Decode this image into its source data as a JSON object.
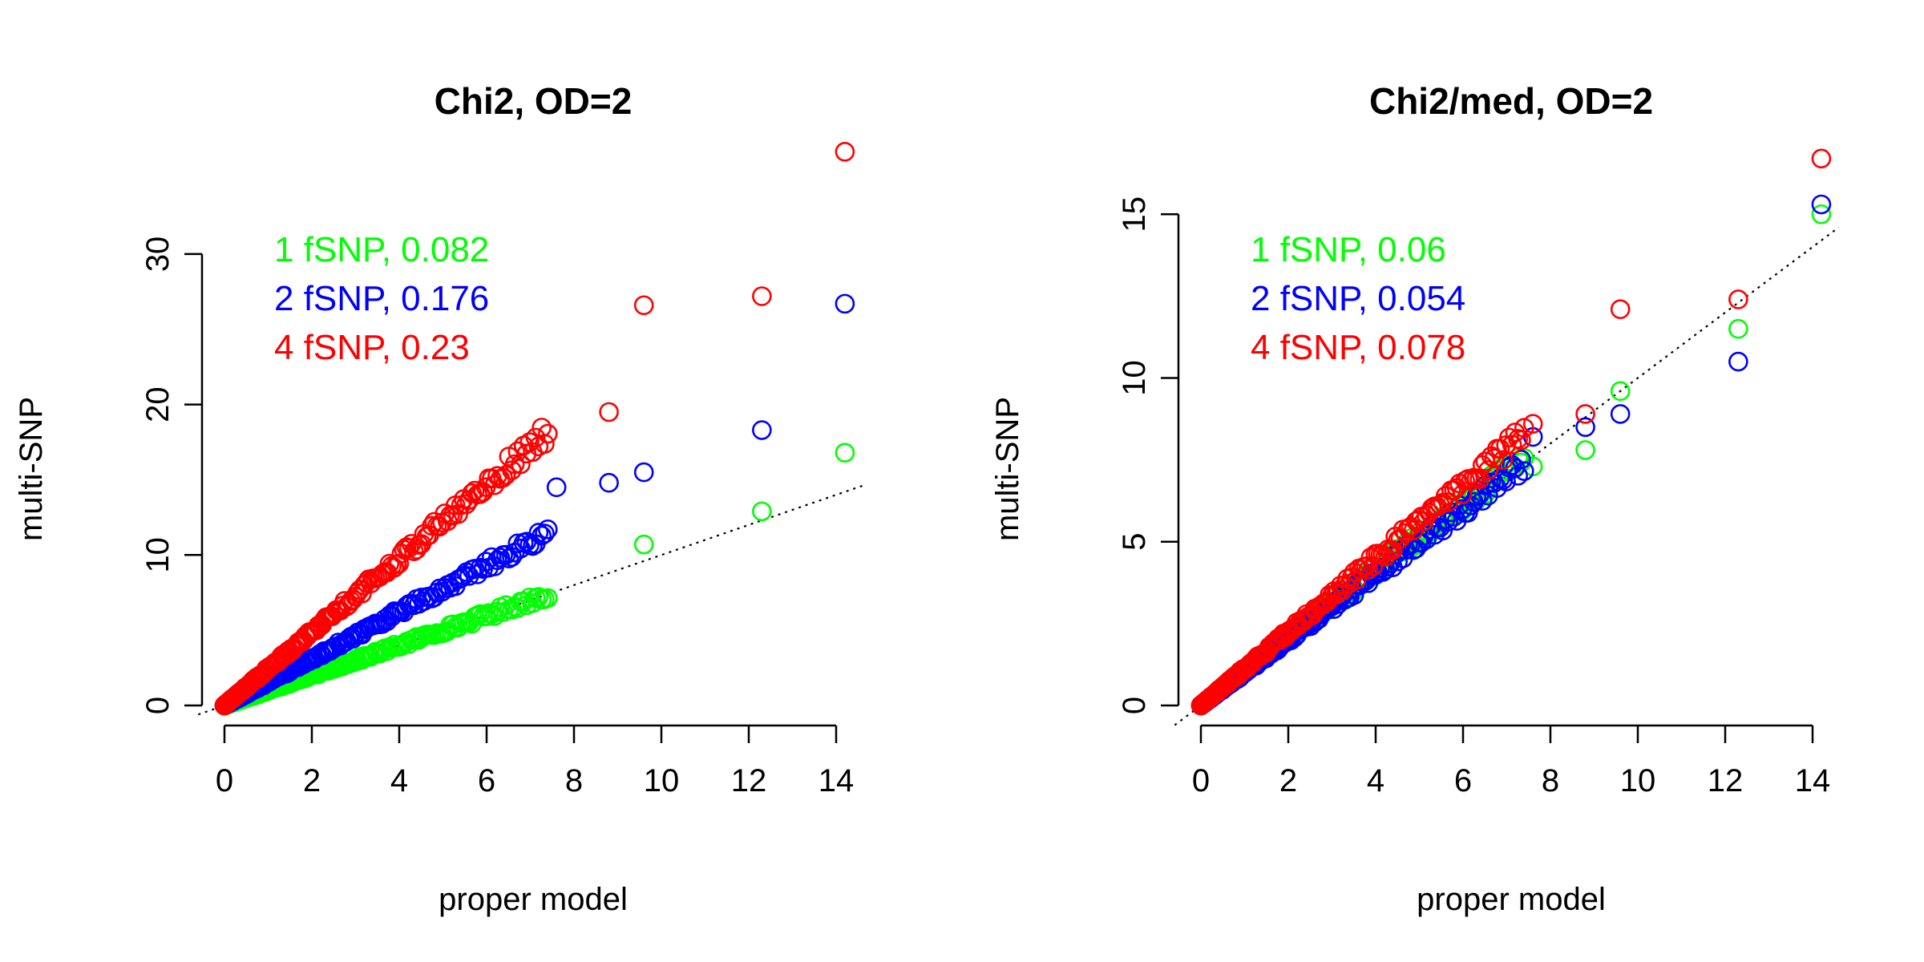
{
  "chart_data": [
    {
      "type": "scatter",
      "title": "Chi2, OD=2",
      "xlabel": "proper model",
      "ylabel": "multi-SNP",
      "xlim": [
        0,
        14.3
      ],
      "ylim": [
        0,
        37
      ],
      "xticks": [
        0,
        2,
        4,
        6,
        8,
        10,
        12,
        14
      ],
      "yticks": [
        0,
        10,
        20,
        30
      ],
      "reference_line": {
        "type": "identity",
        "style": "dotted",
        "color": "#000000"
      },
      "legend_placement": "top-left",
      "series": [
        {
          "name": "1 fSNP, 0.082",
          "color": "#00ff00",
          "slope": 1.0,
          "points": [
            [
              9.6,
              10.7
            ],
            [
              12.3,
              12.9
            ],
            [
              14.2,
              16.8
            ]
          ]
        },
        {
          "name": "2 fSNP, 0.176",
          "color": "#0000ff",
          "slope": 1.55,
          "points": [
            [
              7.6,
              14.5
            ],
            [
              8.8,
              14.8
            ],
            [
              9.6,
              15.5
            ],
            [
              12.3,
              18.3
            ],
            [
              14.2,
              26.7
            ]
          ]
        },
        {
          "name": "4 fSNP, 0.23",
          "color": "#ff0000",
          "slope": 2.45,
          "points": [
            [
              8.8,
              19.5
            ],
            [
              9.6,
              26.6
            ],
            [
              12.3,
              27.2
            ],
            [
              14.2,
              36.8
            ]
          ]
        }
      ]
    },
    {
      "type": "scatter",
      "title": "Chi2/med, OD=2",
      "xlabel": "proper model",
      "ylabel": "multi-SNP",
      "xlim": [
        0,
        14.3
      ],
      "ylim": [
        0,
        17
      ],
      "xticks": [
        0,
        2,
        4,
        6,
        8,
        10,
        12,
        14
      ],
      "yticks": [
        0,
        5,
        10,
        15
      ],
      "reference_line": {
        "type": "identity",
        "style": "dotted",
        "color": "#000000"
      },
      "legend_placement": "top-left",
      "series": [
        {
          "name": "1 fSNP, 0.06",
          "color": "#00ff00",
          "slope": 1.03,
          "points": [
            [
              7.6,
              7.3
            ],
            [
              8.8,
              7.8
            ],
            [
              9.6,
              9.6
            ],
            [
              12.3,
              11.5
            ],
            [
              14.2,
              15.0
            ]
          ]
        },
        {
          "name": "2 fSNP, 0.054",
          "color": "#0000ff",
          "slope": 1.0,
          "points": [
            [
              7.6,
              8.2
            ],
            [
              8.8,
              8.5
            ],
            [
              9.6,
              8.9
            ],
            [
              12.3,
              10.5
            ],
            [
              14.2,
              15.3
            ]
          ]
        },
        {
          "name": "4 fSNP, 0.078",
          "color": "#ff0000",
          "slope": 1.12,
          "points": [
            [
              7.6,
              8.6
            ],
            [
              8.8,
              8.9
            ],
            [
              9.6,
              12.1
            ],
            [
              12.3,
              12.4
            ],
            [
              14.2,
              16.7
            ]
          ]
        }
      ]
    }
  ]
}
